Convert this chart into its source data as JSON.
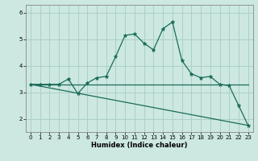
{
  "xlabel": "Humidex (Indice chaleur)",
  "bg_color": "#cce8e0",
  "grid_color": "#aad0c8",
  "line_color": "#1a6b5a",
  "xlim": [
    -0.5,
    23.5
  ],
  "ylim": [
    1.5,
    6.3
  ],
  "yticks": [
    2,
    3,
    4,
    5,
    6
  ],
  "xticks": [
    0,
    1,
    2,
    3,
    4,
    5,
    6,
    7,
    8,
    9,
    10,
    11,
    12,
    13,
    14,
    15,
    16,
    17,
    18,
    19,
    20,
    21,
    22,
    23
  ],
  "main_x": [
    0,
    1,
    2,
    3,
    4,
    5,
    6,
    7,
    8,
    9,
    10,
    11,
    12,
    13,
    14,
    15,
    16,
    17,
    18,
    19,
    20,
    21,
    22,
    23
  ],
  "main_y": [
    3.3,
    3.3,
    3.3,
    3.3,
    3.5,
    2.95,
    3.35,
    3.55,
    3.6,
    4.35,
    5.15,
    5.2,
    4.85,
    4.6,
    5.4,
    5.65,
    4.2,
    3.7,
    3.55,
    3.6,
    3.3,
    3.25,
    2.5,
    1.75
  ],
  "trend1_x": [
    0,
    23
  ],
  "trend1_y": [
    3.3,
    3.3
  ],
  "trend2_x": [
    0,
    23
  ],
  "trend2_y": [
    3.3,
    1.75
  ],
  "xlabel_fontsize": 6.0,
  "tick_labelsize": 5.0
}
